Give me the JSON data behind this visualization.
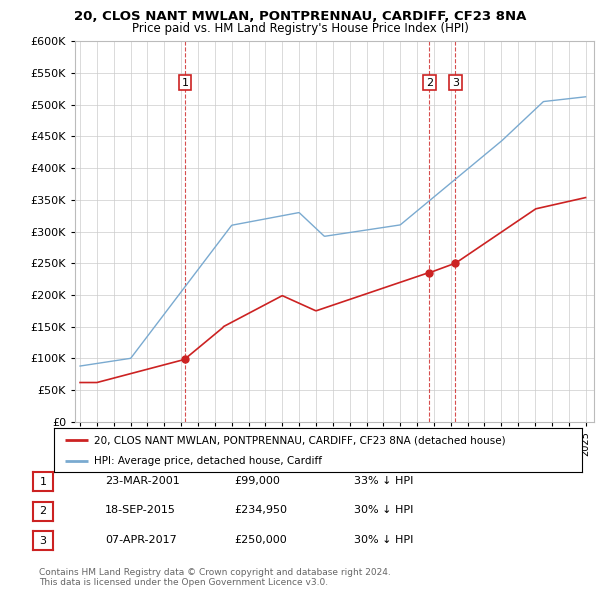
{
  "title": "20, CLOS NANT MWLAN, PONTPRENNAU, CARDIFF, CF23 8NA",
  "subtitle": "Price paid vs. HM Land Registry's House Price Index (HPI)",
  "ylim": [
    0,
    600000
  ],
  "yticks": [
    0,
    50000,
    100000,
    150000,
    200000,
    250000,
    300000,
    350000,
    400000,
    450000,
    500000,
    550000,
    600000
  ],
  "xlim_start": 1994.7,
  "xlim_end": 2025.5,
  "hpi_color": "#7aaad0",
  "price_color": "#cc2222",
  "transactions": [
    {
      "date_num": 2001.22,
      "price": 99000,
      "label": "1"
    },
    {
      "date_num": 2015.72,
      "price": 234950,
      "label": "2"
    },
    {
      "date_num": 2017.27,
      "price": 250000,
      "label": "3"
    }
  ],
  "legend_line1": "20, CLOS NANT MWLAN, PONTPRENNAU, CARDIFF, CF23 8NA (detached house)",
  "legend_line2": "HPI: Average price, detached house, Cardiff",
  "table_rows": [
    {
      "num": "1",
      "date": "23-MAR-2001",
      "price": "£99,000",
      "pct": "33% ↓ HPI"
    },
    {
      "num": "2",
      "date": "18-SEP-2015",
      "price": "£234,950",
      "pct": "30% ↓ HPI"
    },
    {
      "num": "3",
      "date": "07-APR-2017",
      "price": "£250,000",
      "pct": "30% ↓ HPI"
    }
  ],
  "footnote": "Contains HM Land Registry data © Crown copyright and database right 2024.\nThis data is licensed under the Open Government Licence v3.0.",
  "background_color": "#ffffff",
  "grid_color": "#cccccc"
}
